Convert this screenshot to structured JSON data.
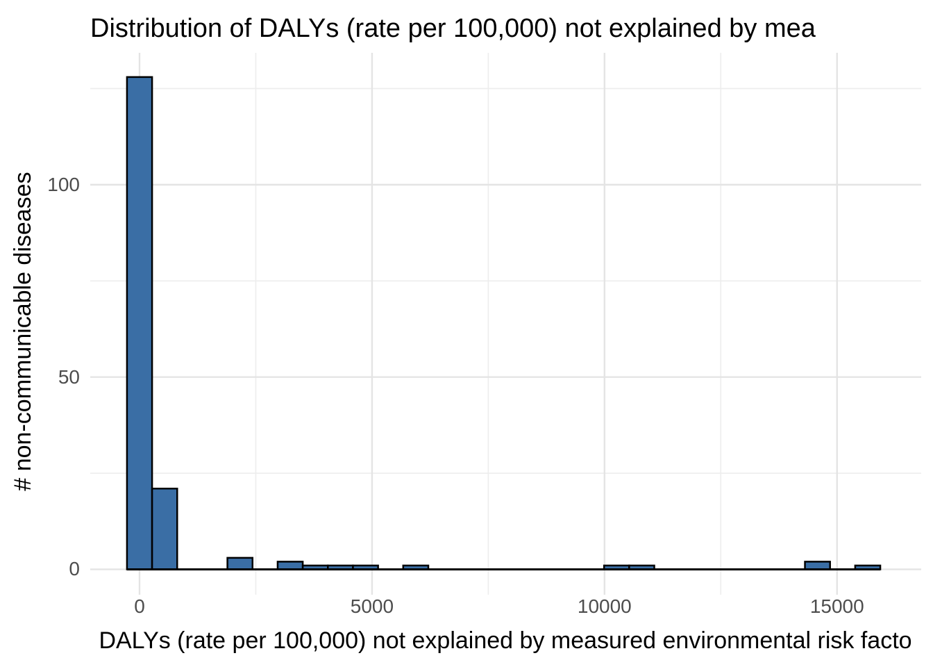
{
  "chart_data": {
    "type": "bar",
    "subtype": "histogram",
    "title": "Distribution of DALYs (rate per 100,000) not explained by mea",
    "xlabel": "DALYs (rate per 100,000) not explained by measured environmental risk facto",
    "ylabel": "# non-communicable diseases",
    "x_ticks": [
      0,
      5000,
      10000,
      15000
    ],
    "x_minor_ticks": [
      2500,
      7500,
      12500
    ],
    "y_ticks": [
      0,
      50,
      100
    ],
    "y_minor_ticks": [
      25,
      75,
      125
    ],
    "xlim": [
      -1060,
      16810
    ],
    "ylim": [
      -6.6,
      134.3
    ],
    "bin_width": 540,
    "bar_range": [
      -270,
      15930
    ],
    "bins": [
      {
        "center": 0,
        "count": 128
      },
      {
        "center": 540,
        "count": 21
      },
      {
        "center": 2160,
        "count": 3
      },
      {
        "center": 3240,
        "count": 2
      },
      {
        "center": 3780,
        "count": 1
      },
      {
        "center": 4320,
        "count": 1
      },
      {
        "center": 4860,
        "count": 1
      },
      {
        "center": 5940,
        "count": 1
      },
      {
        "center": 10260,
        "count": 1
      },
      {
        "center": 10800,
        "count": 1
      },
      {
        "center": 14580,
        "count": 2
      },
      {
        "center": 15660,
        "count": 1
      }
    ],
    "legend": "none",
    "grid": "on",
    "colors": {
      "bar_fill": "#3A6EA5",
      "bar_stroke": "#000000",
      "grid_major": "#E4E4E4",
      "grid_minor": "#EDEDED",
      "tick_text": "#4D4D4D",
      "title_text": "#000000",
      "background": "#FFFFFF"
    }
  }
}
